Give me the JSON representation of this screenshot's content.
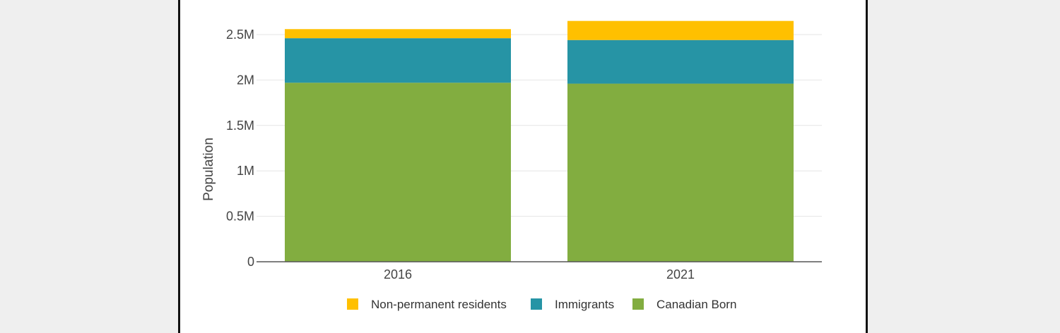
{
  "chart_data": {
    "type": "bar",
    "stacked": true,
    "ylabel": "Population",
    "xlabel": "",
    "ylim": [
      0,
      2650000
    ],
    "yticks": [
      0,
      500000,
      1000000,
      1500000,
      2000000,
      2500000
    ],
    "ytick_labels": [
      "0",
      "0.5M",
      "1M",
      "1.5M",
      "2M",
      "2.5M"
    ],
    "categories": [
      "2016",
      "2021"
    ],
    "grid": true,
    "legend_position": "bottom",
    "series": [
      {
        "name": "Canadian Born",
        "color": "#82ad40",
        "values": [
          1970000,
          1960000
        ]
      },
      {
        "name": "Immigrants",
        "color": "#2694a5",
        "values": [
          490000,
          480000
        ]
      },
      {
        "name": "Non-permanent residents",
        "color": "#ffc000",
        "values": [
          100000,
          210000
        ]
      }
    ],
    "legend_order": [
      "Non-permanent residents",
      "Immigrants",
      "Canadian Born"
    ]
  }
}
